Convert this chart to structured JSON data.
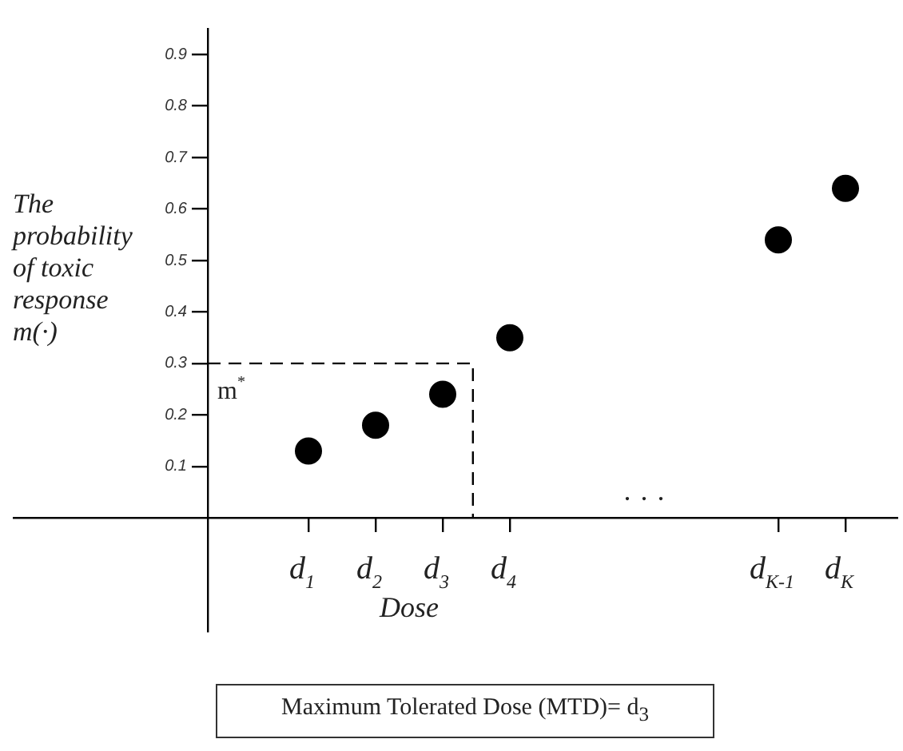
{
  "chart_data": {
    "type": "scatter",
    "categories": [
      null,
      "d$_{1}$",
      "d$_{2}$",
      "d$_{3}$",
      "d$_{4}$",
      null,
      null,
      null,
      "d$_{K-1}$",
      "d$_{K}$"
    ],
    "series": [
      {
        "color": "#000000",
        "values": [
          null,
          0.13,
          0.18,
          0.24,
          0.35,
          null,
          null,
          null,
          0.54,
          0.64
        ]
      }
    ],
    "ylim": [
      -0.22,
      0.95
    ],
    "yticks": [
      0.1,
      0.2,
      0.3,
      0.4,
      0.5,
      0.6,
      0.7,
      0.8,
      0.9
    ],
    "marker": "circle",
    "grid": false,
    "legend": false,
    "xlabel": "Dose",
    "ylabel": "The probability of toxic response m(·)",
    "ref_lines": [
      {
        "axis": "y",
        "value": 0.3,
        "label": "m$^{*}$",
        "line_style": "dashed",
        "color": "#000000"
      }
    ],
    "annotations": [
      "· · ·",
      "Maximum Tolerated Dose (MTD)= d$_{3}$"
    ]
  }
}
